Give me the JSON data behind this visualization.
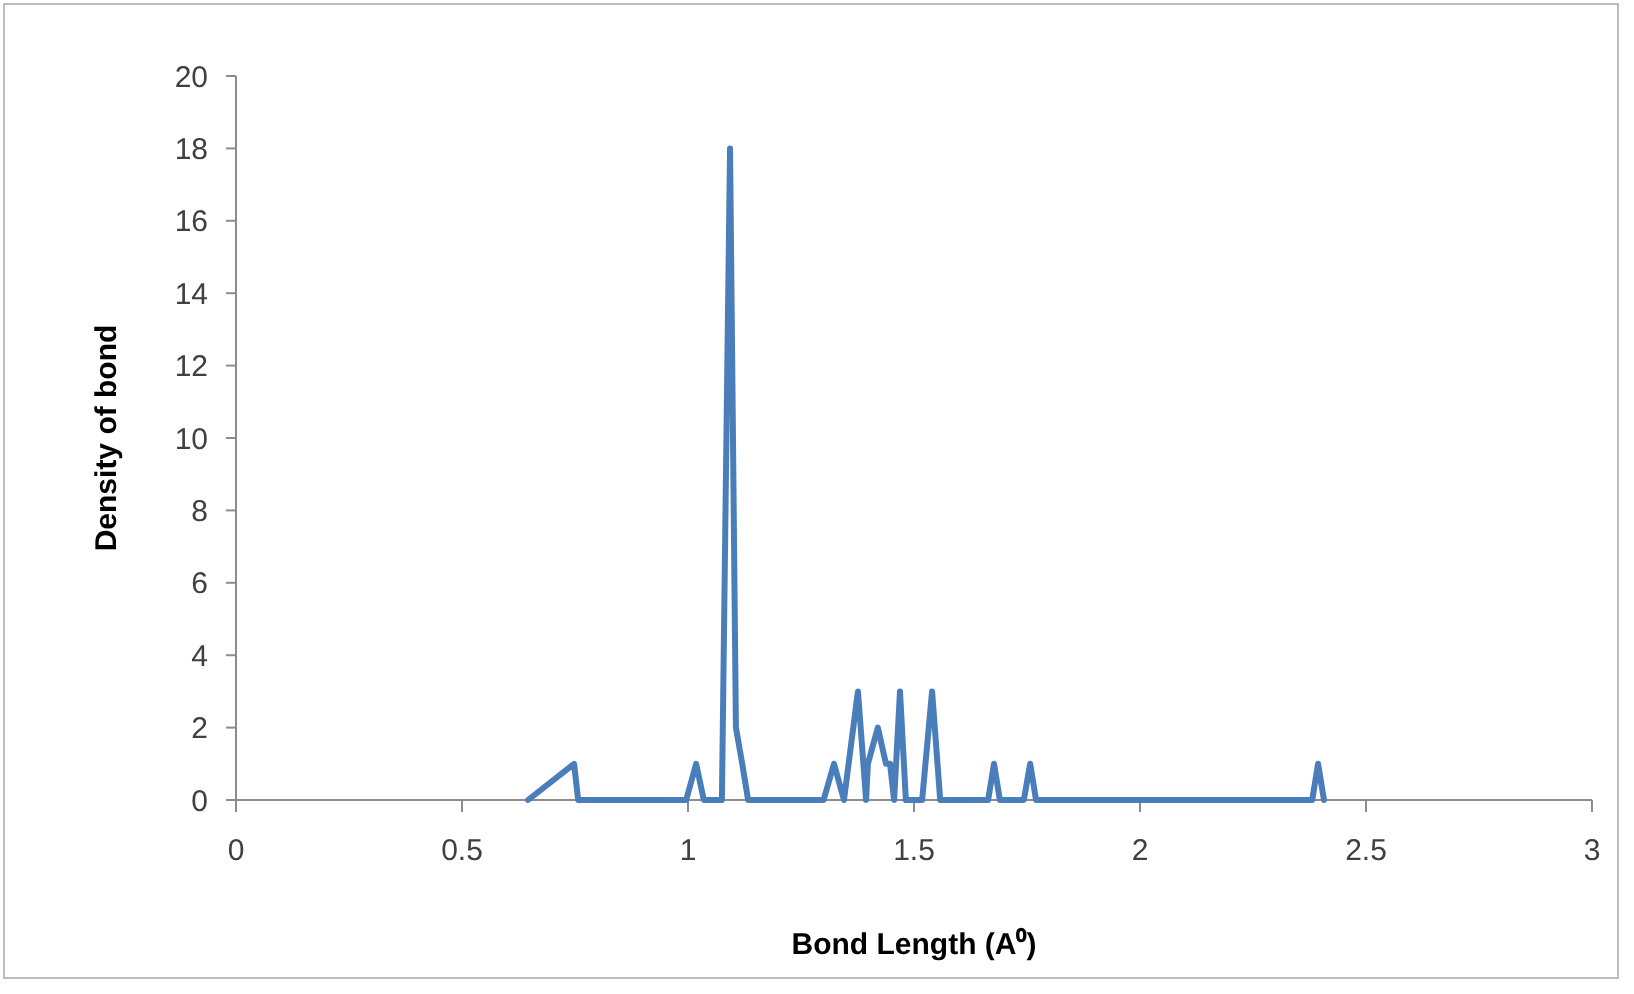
{
  "chart_data": {
    "type": "line",
    "xlabel": "Bond Length (A⁰)",
    "ylabel": "Density of bond",
    "xlim": [
      0,
      3
    ],
    "xticks": [
      0,
      0.5,
      1,
      1.5,
      2,
      2.5,
      3
    ],
    "ylim": [
      0,
      20
    ],
    "yticks": [
      0,
      2,
      4,
      6,
      8,
      10,
      12,
      14,
      16,
      18,
      20
    ],
    "grid": false,
    "marker": "none",
    "line_style": "solid",
    "series": [
      {
        "color": "#4a7ebb",
        "x": [
          0.646,
          0.748,
          0.757,
          0.996,
          1.018,
          1.035,
          1.075,
          1.093,
          1.106,
          1.12,
          1.133,
          1.3,
          1.323,
          1.345,
          1.376,
          1.394,
          1.398,
          1.42,
          1.438,
          1.447,
          1.456,
          1.469,
          1.482,
          1.518,
          1.54,
          1.558,
          1.664,
          1.677,
          1.69,
          1.743,
          1.757,
          1.77,
          2.381,
          2.394,
          2.407
        ],
        "values": [
          0,
          1,
          0,
          0,
          1,
          0,
          0,
          18,
          2,
          1,
          0,
          0,
          1,
          0,
          3,
          0,
          1,
          2,
          1,
          1,
          0,
          3,
          0,
          0,
          3,
          0,
          0,
          1,
          0,
          0,
          1,
          0,
          0,
          1,
          0
        ]
      }
    ]
  }
}
